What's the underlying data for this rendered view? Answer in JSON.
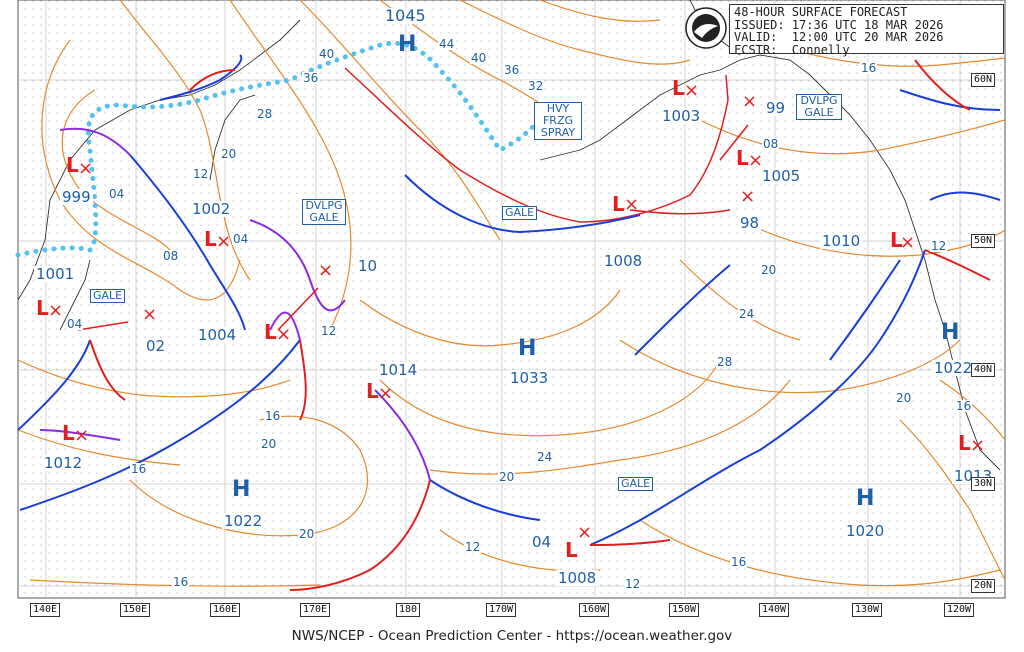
{
  "header": {
    "line1": "48-HOUR SURFACE FORECAST",
    "line2": "ISSUED: 17:36 UTC 18 MAR 2026",
    "line3": "VALID:  12:00 UTC 20 MAR 2026",
    "line4": "FCSTR:  Connelly"
  },
  "footer": "NWS/NCEP - Ocean Prediction Center - https://ocean.weather.gov",
  "longitudes": [
    "140E",
    "150E",
    "160E",
    "170E",
    "180",
    "170W",
    "160W",
    "150W",
    "140W",
    "130W",
    "120W"
  ],
  "latitudes": [
    "60N",
    "50N",
    "40N",
    "30N",
    "20N"
  ],
  "highs": [
    {
      "label": "H",
      "pressure": "1045"
    },
    {
      "label": "H",
      "pressure": "1033"
    },
    {
      "label": "H",
      "pressure": "1022"
    },
    {
      "label": "H",
      "pressure": "1020"
    },
    {
      "label": "H",
      "pressure": "1022"
    }
  ],
  "lows": [
    "999",
    "1001",
    "1002",
    "1004",
    "1014",
    "1012",
    "1008",
    "1003",
    "1005",
    "1010",
    "1013",
    "1008"
  ],
  "forecast_positions": [
    "04",
    "02",
    "10",
    "99",
    "98",
    "04",
    "04",
    "08"
  ],
  "isobar_labels": [
    "40",
    "36",
    "44",
    "40",
    "36",
    "32",
    "28",
    "20",
    "12",
    "08",
    "04",
    "16",
    "12",
    "20",
    "24",
    "28",
    "24",
    "20",
    "16",
    "20",
    "12",
    "16",
    "16",
    "20",
    "20",
    "16",
    "12",
    "16",
    "12"
  ],
  "warnings": [
    "GALE",
    "GALE",
    "GALE",
    "GALE",
    "DVLPG GALE",
    "DVLPG GALE",
    "HVY FRZG SPRAY"
  ],
  "colors": {
    "isobar": "#e58a2e",
    "cold_front": "#1a3fd6",
    "warm_front": "#e02020",
    "occluded": "#8a2be2",
    "ice": "#55c2ee",
    "low": "#e02020",
    "high": "#1f5fa8"
  }
}
